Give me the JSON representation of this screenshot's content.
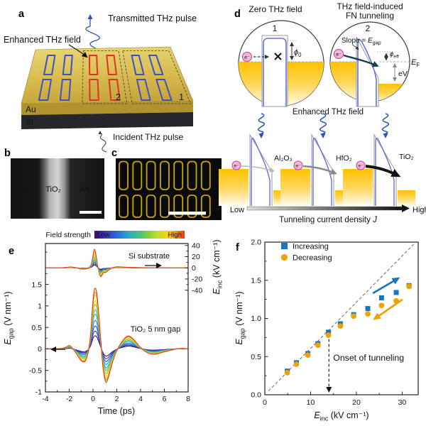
{
  "panel_labels": {
    "a": "a",
    "b": "b",
    "c": "c",
    "d": "d",
    "e": "e",
    "f": "f"
  },
  "panel_a": {
    "transmitted_label": "Transmitted THz pulse",
    "enhanced_label": "Enhanced THz field",
    "incident_label": "Incident THz pulse",
    "au_label": "Au",
    "si_label": "Si",
    "region_1": "1",
    "region_2": "2",
    "colors": {
      "gold_top": "#d8bd52",
      "gold_side": "#b2922e",
      "si_side": "#27272b",
      "blue_antenna": "#3f51c1",
      "red_antenna": "#e03328",
      "pulse_blue": "#2a52b8"
    }
  },
  "panel_b": {
    "au_left": "Au",
    "oxide_label": "TiO₂",
    "au_right": "Au"
  },
  "panel_d": {
    "title_left": "Zero THz field",
    "title_right_line1": "THz field-induced",
    "title_right_line2": "FN tunneling",
    "circle1_num": "1",
    "circle2_num": "2",
    "slope_label": [
      {
        "t": "Slope = "
      },
      {
        "t": "E",
        "i": true
      },
      {
        "t": "gap",
        "sub": true
      }
    ],
    "phi0_label": [
      {
        "t": "ϕ",
        "i": true
      },
      {
        "t": "0",
        "sub": true
      }
    ],
    "phieff_label": [
      {
        "t": "ϕ",
        "i": true
      },
      {
        "t": "eff",
        "sub": true
      }
    ],
    "ef_label": [
      {
        "t": "E",
        "i": true
      },
      {
        "t": "F",
        "sub": true
      }
    ],
    "ev_label": "eV",
    "electron": "e⁻",
    "enhanced_label": "Enhanced THz field",
    "oxide1": "Al₂O₃",
    "oxide2": "HfO₂",
    "oxide3": "TiO₂",
    "low_label": "Low",
    "high_label": "High",
    "current_label": [
      {
        "t": "Tunneling current density "
      },
      {
        "t": "J",
        "i": true
      }
    ]
  },
  "chart_data": [
    {
      "id": "e",
      "type": "line",
      "xlabel": "Time (ps)",
      "xlim": [
        -4,
        8
      ],
      "xticks": [
        {
          "v": -4,
          "l": "-4"
        },
        {
          "v": -2,
          "l": "-2"
        },
        {
          "v": 0,
          "l": "0"
        },
        {
          "v": 2,
          "l": "2"
        },
        {
          "v": 4,
          "l": "4"
        },
        {
          "v": 6,
          "l": "6"
        },
        {
          "v": 8,
          "l": "8"
        }
      ],
      "ylabel_left": [
        {
          "t": "E",
          "i": true
        },
        {
          "t": "gap",
          "sub": true
        },
        {
          "t": " (V nm⁻¹)"
        }
      ],
      "ylim_left": [
        -1,
        2.45
      ],
      "yticks_left": [
        {
          "v": -1,
          "l": "-1"
        },
        {
          "v": -0.5,
          "l": "-0.5"
        },
        {
          "v": 0,
          "l": "0"
        },
        {
          "v": 0.5,
          "l": "0.5"
        },
        {
          "v": 1,
          "l": "1"
        },
        {
          "v": 1.5,
          "l": "1.5"
        }
      ],
      "ylabel_right": [
        {
          "t": "E",
          "i": true
        },
        {
          "t": "inc",
          "sub": true
        },
        {
          "t": " (kV cm⁻¹)"
        }
      ],
      "yticks_right": [
        {
          "v": 40,
          "l": "40"
        },
        {
          "v": 20,
          "l": "20"
        },
        {
          "v": 0,
          "l": "0"
        },
        {
          "v": -20,
          "l": "-20"
        },
        {
          "v": -40,
          "l": "-40"
        }
      ],
      "right_zero_left_units": 1.885,
      "right_kv_per_left_unit": 77,
      "colorbar": {
        "label": "Field strength",
        "low": "Low",
        "high": "High"
      },
      "trace_colors": [
        "#35106b",
        "#3c2bb3",
        "#2f55d0",
        "#2a82d8",
        "#2fb0c0",
        "#46c283",
        "#85cf3c",
        "#c3dc2b",
        "#f3d21f",
        "#f59c18",
        "#eb3413"
      ],
      "field_strengths_kv": [
        4.9,
        6.9,
        9.4,
        11.6,
        13.9,
        16.5,
        19.4,
        22.5,
        25.5,
        28.7,
        31.5
      ],
      "gap_peak_amplitudes": [
        0.31,
        0.42,
        0.54,
        0.67,
        0.82,
        0.93,
        1.05,
        1.13,
        1.27,
        1.34,
        1.43
      ],
      "si_annotation": "Si substrate",
      "gap_annotation": "TiO₂ 5 nm gap",
      "si_waveform": {
        "t": [
          -4,
          -3,
          -2.5,
          -2.1,
          -1.8,
          -1.5,
          -1.2,
          -0.9,
          -0.6,
          -0.35,
          -0.15,
          0.0,
          0.1,
          0.22,
          0.35,
          0.5,
          0.62,
          0.75,
          0.9,
          1.05,
          1.25,
          1.5,
          1.8,
          2.1,
          2.5,
          3.0,
          3.8,
          4.8,
          6.0,
          7.0,
          8.0
        ],
        "v_kv": [
          0,
          0,
          0.3,
          1.2,
          1.5,
          0.4,
          -1.2,
          -2.4,
          -2.0,
          -0.3,
          6,
          22,
          33,
          27,
          9,
          -7,
          -15.5,
          -13.5,
          -8,
          -8.5,
          -5,
          -1.5,
          1.2,
          2.0,
          1.4,
          0.8,
          0.4,
          0.2,
          0.1,
          0,
          0
        ]
      },
      "gap_waveform": {
        "t": [
          -4,
          -3.2,
          -2.6,
          -2.2,
          -2.0,
          -1.8,
          -1.55,
          -1.3,
          -1.05,
          -0.85,
          -0.65,
          -0.5,
          -0.35,
          -0.2,
          -0.05,
          0.08,
          0.2,
          0.32,
          0.45,
          0.58,
          0.72,
          0.85,
          0.98,
          1.1,
          1.25,
          1.45,
          1.65,
          1.9,
          2.15,
          2.45,
          2.75,
          3.0,
          3.3,
          3.6,
          3.9,
          4.3,
          4.8,
          5.3,
          5.8,
          6.4,
          7.0,
          7.6,
          8.0
        ],
        "v": [
          0,
          0,
          0.01,
          0.05,
          0.08,
          0.04,
          -0.05,
          -0.15,
          -0.25,
          -0.3,
          -0.28,
          -0.18,
          0.0,
          0.35,
          0.95,
          1.32,
          1.41,
          1.28,
          0.92,
          0.45,
          -0.05,
          -0.45,
          -0.68,
          -0.78,
          -0.7,
          -0.5,
          -0.3,
          -0.1,
          0.04,
          0.17,
          0.27,
          0.3,
          0.25,
          0.16,
          0.06,
          -0.04,
          -0.11,
          -0.12,
          -0.08,
          -0.04,
          0.0,
          0.01,
          0.0
        ]
      }
    },
    {
      "id": "f",
      "type": "scatter",
      "xlabel": [
        {
          "t": "E",
          "i": true
        },
        {
          "t": "inc",
          "sub": true
        },
        {
          "t": " (kV cm⁻¹)"
        }
      ],
      "ylabel": [
        {
          "t": "E",
          "i": true
        },
        {
          "t": "gap",
          "sub": true
        },
        {
          "t": " (V nm⁻¹)"
        }
      ],
      "xlim": [
        0,
        33.5
      ],
      "ylim": [
        0,
        2
      ],
      "xticks": [
        {
          "v": 0,
          "l": "0"
        },
        {
          "v": 10,
          "l": "10"
        },
        {
          "v": 20,
          "l": "20"
        },
        {
          "v": 30,
          "l": "30"
        }
      ],
      "yticks": [
        {
          "v": 0,
          "l": "0.0"
        },
        {
          "v": 0.5,
          "l": "0.5"
        },
        {
          "v": 1,
          "l": "1.0"
        },
        {
          "v": 1.5,
          "l": "1.5"
        },
        {
          "v": 2,
          "l": "2.0"
        }
      ],
      "series": [
        {
          "name": "Increasing",
          "marker": "square",
          "color": "#1b75bc",
          "x": [
            4.9,
            6.9,
            9.4,
            11.6,
            13.9,
            16.5,
            19.4,
            22.5,
            25.5,
            28.7,
            31.5
          ],
          "y": [
            0.31,
            0.42,
            0.54,
            0.67,
            0.82,
            0.93,
            1.05,
            1.13,
            1.27,
            1.34,
            1.43
          ]
        },
        {
          "name": "Decreasing",
          "marker": "circle",
          "color": "#f0a202",
          "x": [
            4.9,
            6.9,
            9.4,
            11.6,
            13.9,
            16.5,
            19.4,
            22.5,
            25.5,
            28.7,
            31.5
          ],
          "y": [
            0.29,
            0.4,
            0.52,
            0.65,
            0.78,
            0.9,
            1.03,
            1.06,
            1.17,
            1.23,
            1.42
          ]
        }
      ],
      "ref_line": {
        "from": [
          0.8,
          0.05
        ],
        "to": [
          32.5,
          1.97
        ]
      },
      "onset": {
        "label": "Onset of tunneling",
        "x": 14,
        "arrow_top_y": 0.73
      },
      "hysteresis_arrows": [
        {
          "color": "#1b75bc",
          "from": [
            23.6,
            1.33
          ],
          "to": [
            29.0,
            1.52
          ]
        },
        {
          "color": "#f0a202",
          "from": [
            30.1,
            1.25
          ],
          "to": [
            24.1,
            1.0
          ]
        }
      ]
    }
  ]
}
